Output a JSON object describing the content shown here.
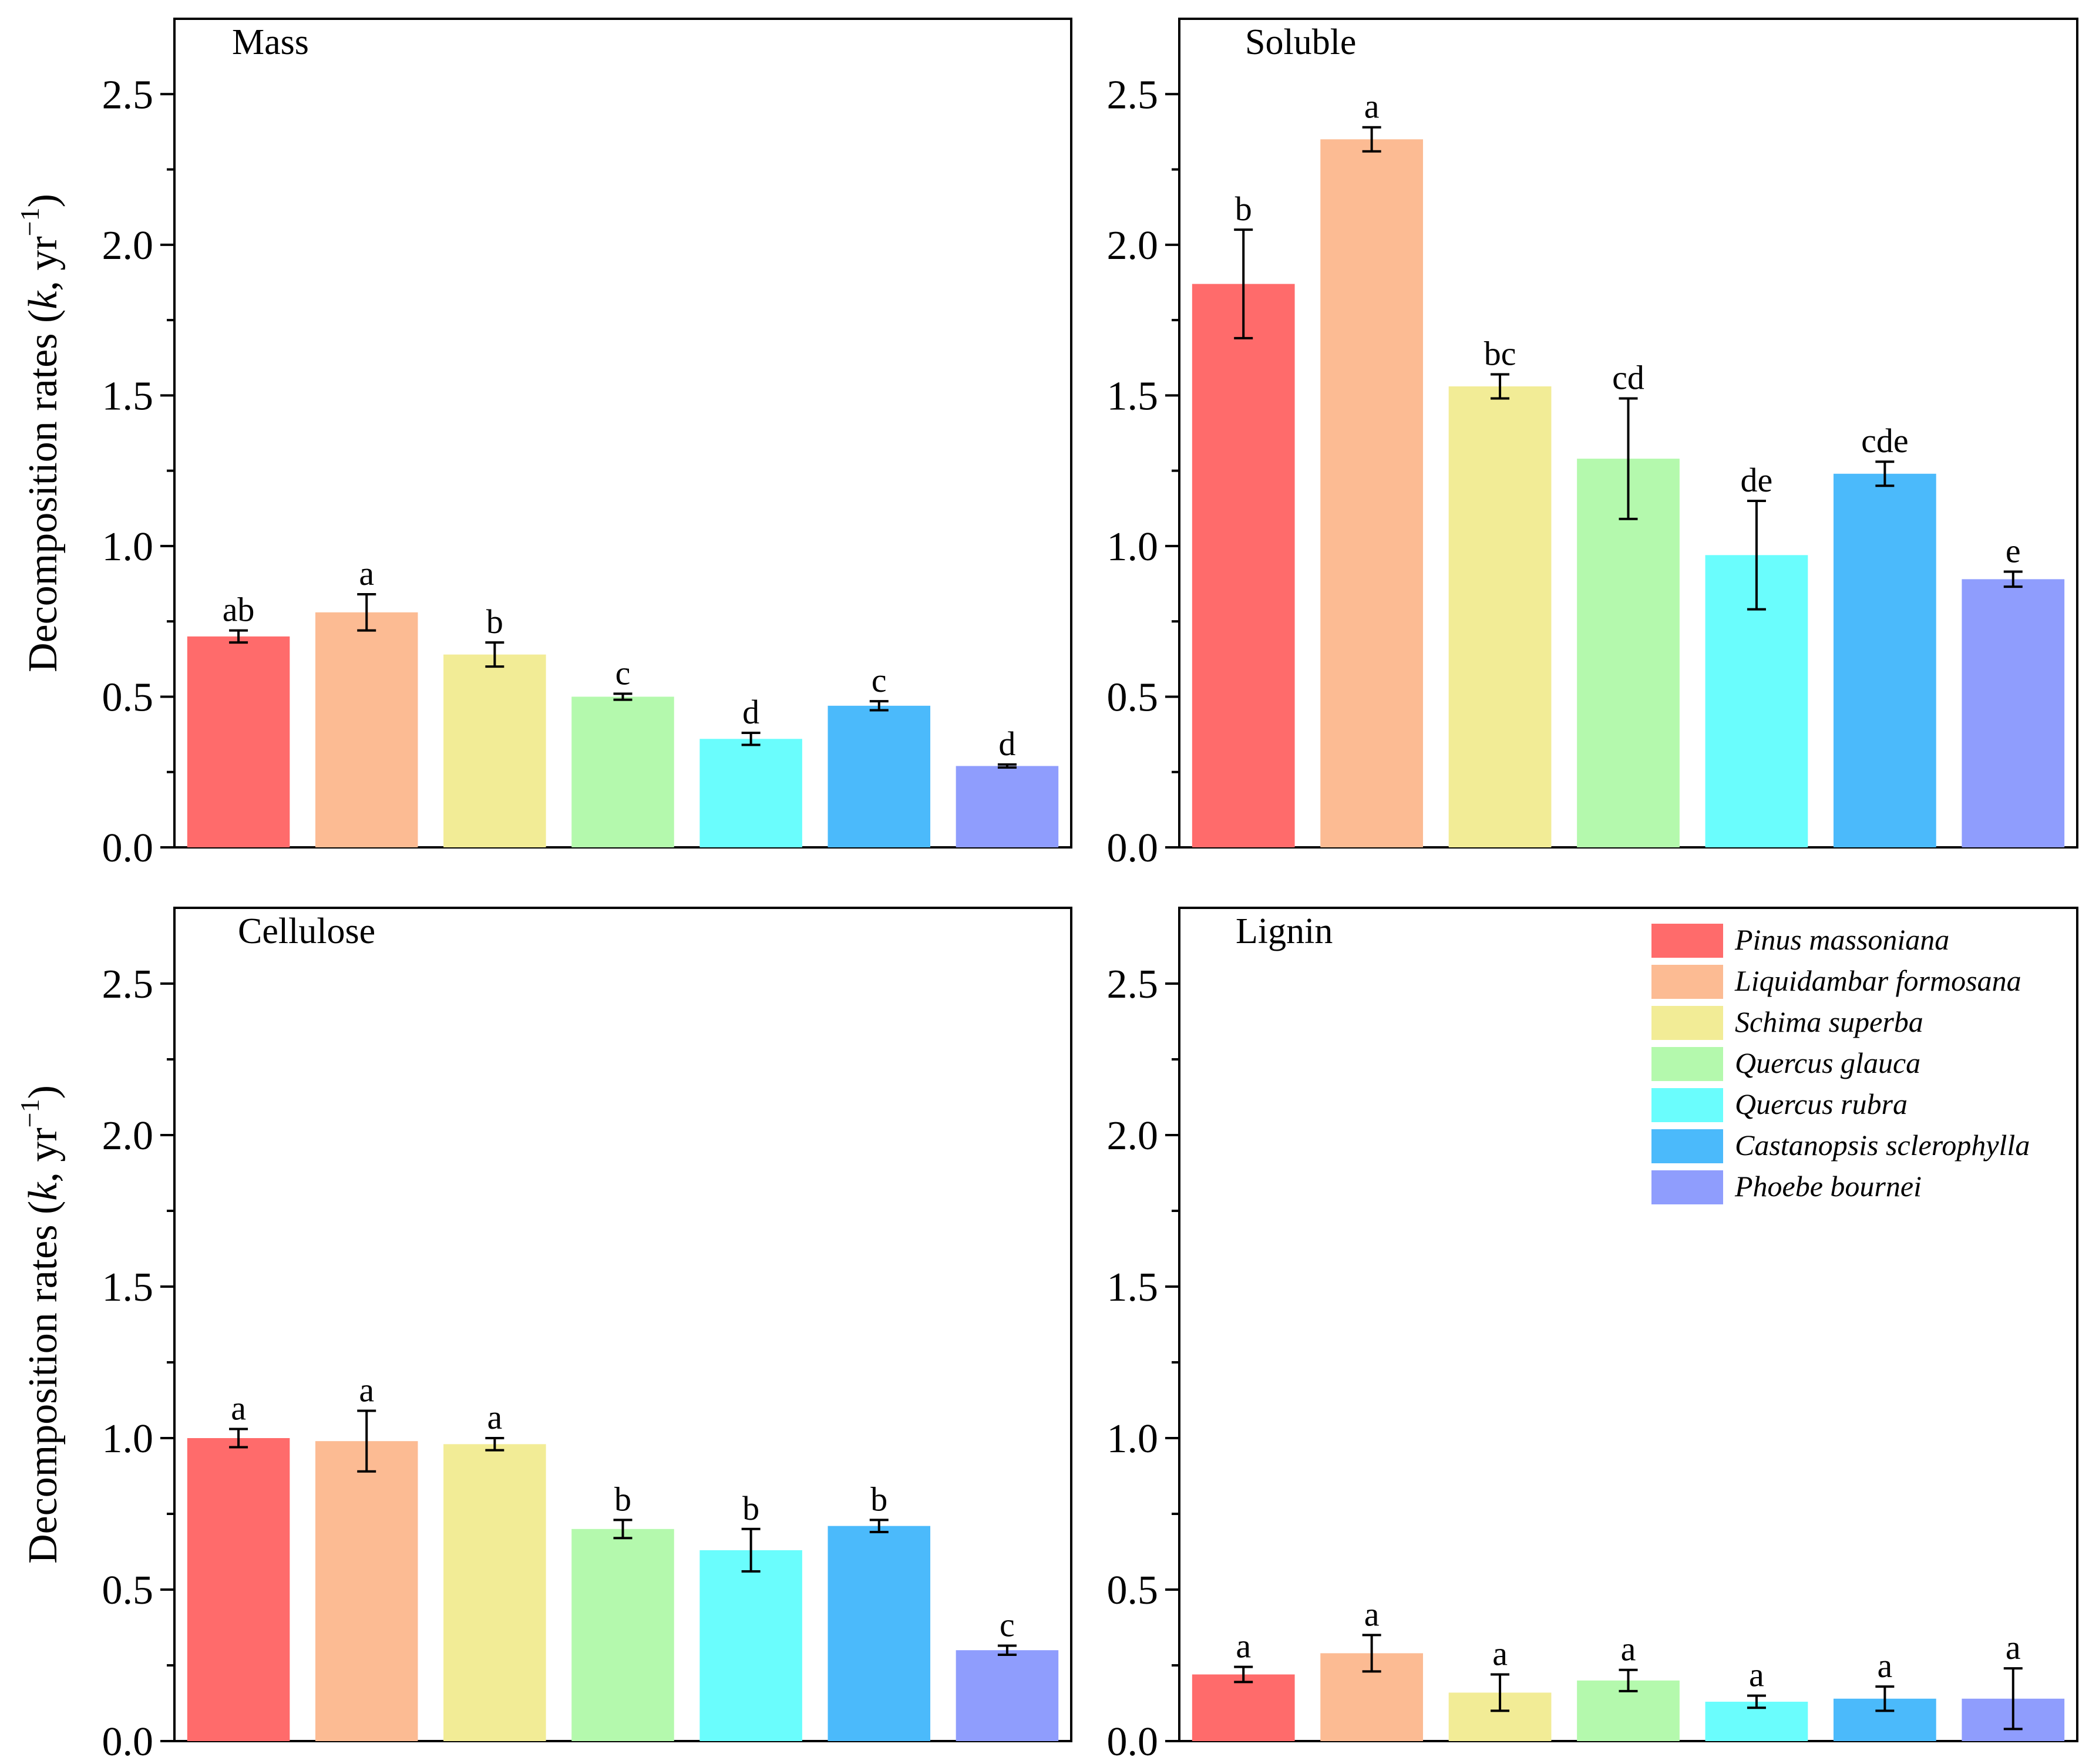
{
  "chart_data": [
    {
      "type": "bar",
      "title": "Mass",
      "ylabel_parts": [
        "Decomposition rates (",
        "k",
        ", yr",
        "−1",
        ")"
      ],
      "ylim": [
        0,
        2.75
      ],
      "yticks": [
        "0.0",
        "0.5",
        "1.0",
        "1.5",
        "2.0",
        "2.5"
      ],
      "categories": [
        "Pinus massoniana",
        "Liquidambar formosana",
        "Schima superba",
        "Quercus glauca",
        "Quercus rubra",
        "Castanopsis sclerophylla",
        "Phoebe bournei"
      ],
      "values": [
        0.7,
        0.78,
        0.64,
        0.5,
        0.36,
        0.47,
        0.27
      ],
      "errors": [
        0.02,
        0.06,
        0.04,
        0.01,
        0.02,
        0.015,
        0.005
      ],
      "labels": [
        "ab",
        "a",
        "b",
        "c",
        "d",
        "c",
        "d"
      ]
    },
    {
      "type": "bar",
      "title": "Soluble",
      "ylim": [
        0,
        2.75
      ],
      "yticks": [
        "0.0",
        "0.5",
        "1.0",
        "1.5",
        "2.0",
        "2.5"
      ],
      "categories": [
        "Pinus massoniana",
        "Liquidambar formosana",
        "Schima superba",
        "Quercus glauca",
        "Quercus rubra",
        "Castanopsis sclerophylla",
        "Phoebe bournei"
      ],
      "values": [
        1.87,
        2.35,
        1.53,
        1.29,
        0.97,
        1.24,
        0.89
      ],
      "errors": [
        0.18,
        0.04,
        0.04,
        0.2,
        0.18,
        0.04,
        0.025
      ],
      "labels": [
        "b",
        "a",
        "bc",
        "cd",
        "de",
        "cde",
        "e"
      ]
    },
    {
      "type": "bar",
      "title": "Cellulose",
      "ylabel_parts": [
        "Decomposition rates (",
        "k",
        ", yr",
        "−1",
        ")"
      ],
      "ylim": [
        0,
        2.75
      ],
      "yticks": [
        "0.0",
        "0.5",
        "1.0",
        "1.5",
        "2.0",
        "2.5"
      ],
      "categories": [
        "Pinus massoniana",
        "Liquidambar formosana",
        "Schima superba",
        "Quercus glauca",
        "Quercus rubra",
        "Castanopsis sclerophylla",
        "Phoebe bournei"
      ],
      "values": [
        1.0,
        0.99,
        0.98,
        0.7,
        0.63,
        0.71,
        0.3
      ],
      "errors": [
        0.03,
        0.1,
        0.02,
        0.03,
        0.07,
        0.02,
        0.015
      ],
      "labels": [
        "a",
        "a",
        "a",
        "b",
        "b",
        "b",
        "c"
      ]
    },
    {
      "type": "bar",
      "title": "Lignin",
      "ylim": [
        0,
        2.75
      ],
      "yticks": [
        "0.0",
        "0.5",
        "1.0",
        "1.5",
        "2.0",
        "2.5"
      ],
      "categories": [
        "Pinus massoniana",
        "Liquidambar formosana",
        "Schima superba",
        "Quercus glauca",
        "Quercus rubra",
        "Castanopsis sclerophylla",
        "Phoebe bournei"
      ],
      "values": [
        0.22,
        0.29,
        0.16,
        0.2,
        0.13,
        0.14,
        0.14
      ],
      "errors": [
        0.025,
        0.06,
        0.06,
        0.035,
        0.02,
        0.04,
        0.1
      ],
      "labels": [
        "a",
        "a",
        "a",
        "a",
        "a",
        "a",
        "a"
      ]
    }
  ],
  "legend": {
    "entries": [
      "Pinus massoniana",
      "Liquidambar formosana",
      "Schima superba",
      "Quercus glauca",
      "Quercus rubra",
      "Castanopsis sclerophylla",
      "Phoebe bournei"
    ],
    "placement": "top-right of Lignin panel"
  },
  "colors": [
    "#ff6b6b",
    "#fcbb93",
    "#f2ec96",
    "#b4f9ad",
    "#6afdfd",
    "#4bbafb",
    "#8f9dfd"
  ]
}
